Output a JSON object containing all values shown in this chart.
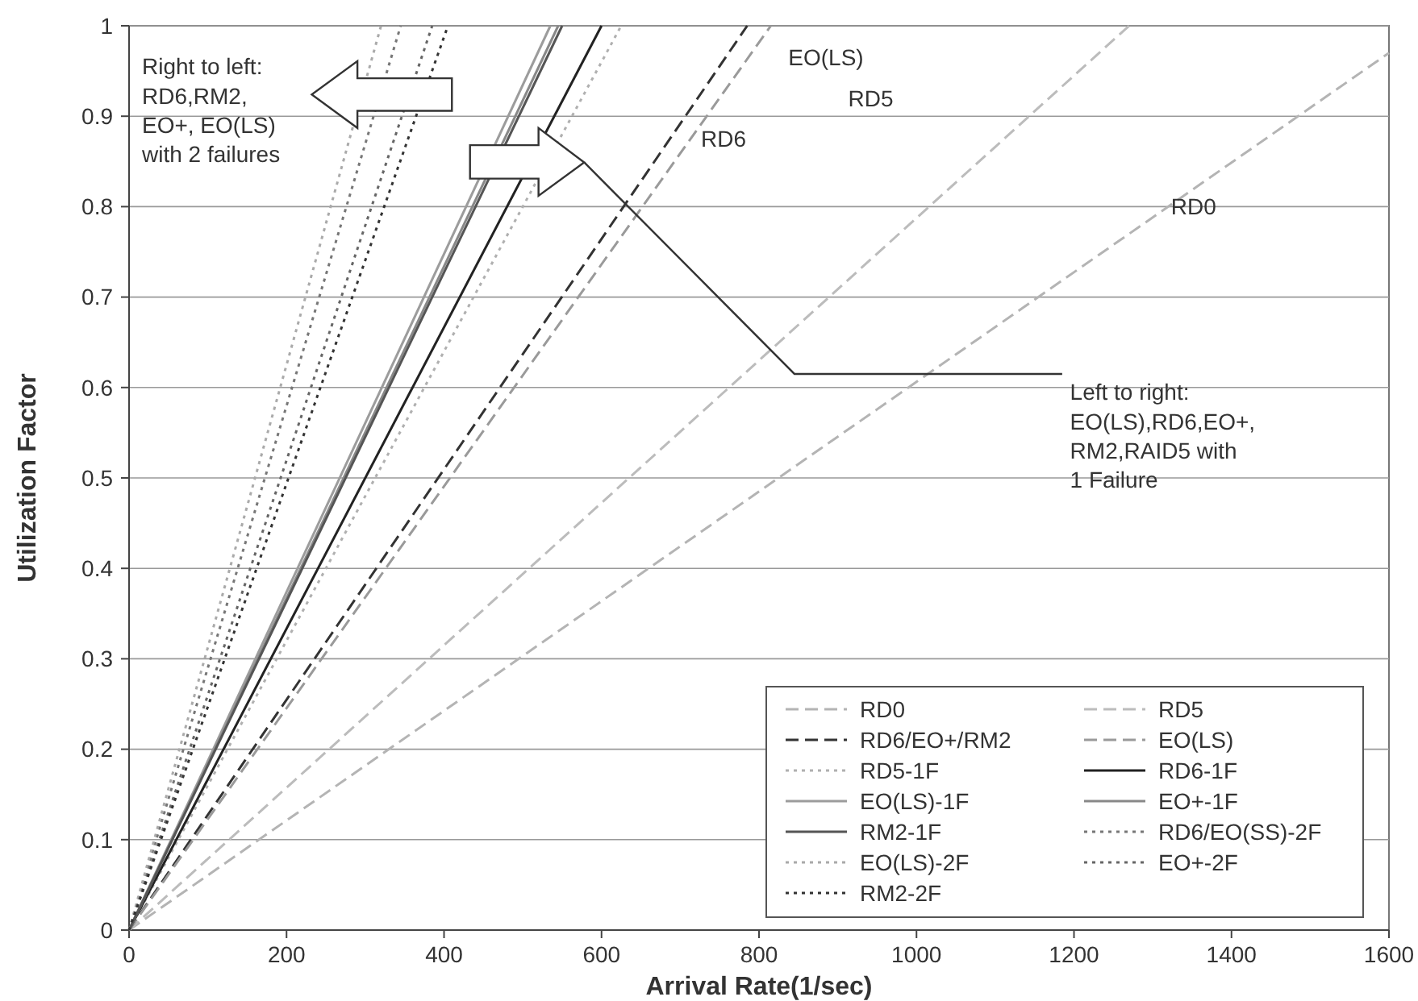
{
  "chart_data": {
    "type": "line",
    "xlabel": "Arrival Rate(1/sec)",
    "ylabel": "Utilization Factor",
    "xlim": [
      0,
      1600
    ],
    "ylim": [
      0,
      1
    ],
    "xticks": [
      0,
      200,
      400,
      600,
      800,
      1000,
      1200,
      1400,
      1600
    ],
    "yticks": [
      0,
      0.1,
      0.2,
      0.3,
      0.4,
      0.5,
      0.6,
      0.7,
      0.8,
      0.9,
      1
    ],
    "grid": "y",
    "legend": "bottom right",
    "marker": "none",
    "series": [
      {
        "name": "RD0",
        "color": "#b4b4b4",
        "line_style": "dashed",
        "x": [
          0,
          1600
        ],
        "values": [
          0,
          0.97
        ]
      },
      {
        "name": "RD5",
        "color": "#bcbcbc",
        "line_style": "dashed",
        "x": [
          0,
          1270
        ],
        "values": [
          0,
          1
        ]
      },
      {
        "name": "RD6/EO+/RM2",
        "color": "#333333",
        "line_style": "dashed",
        "x": [
          0,
          785
        ],
        "values": [
          0,
          1
        ]
      },
      {
        "name": "EO(LS)",
        "color": "#9a9a9a",
        "line_style": "dashed",
        "x": [
          0,
          815
        ],
        "values": [
          0,
          1
        ]
      },
      {
        "name": "RD5-1F",
        "color": "#b0b0b0",
        "line_style": "dotted",
        "x": [
          0,
          625
        ],
        "values": [
          0,
          1
        ]
      },
      {
        "name": "RD6-1F",
        "color": "#222222",
        "line_style": "solid",
        "x": [
          0,
          600
        ],
        "values": [
          0,
          1
        ]
      },
      {
        "name": "EO(LS)-1F",
        "color": "#9c9c9c",
        "line_style": "solid",
        "x": [
          0,
          535
        ],
        "values": [
          0,
          1
        ]
      },
      {
        "name": "EO+-1F",
        "color": "#888888",
        "line_style": "solid",
        "x": [
          0,
          545
        ],
        "values": [
          0,
          1
        ]
      },
      {
        "name": "RM2-1F",
        "color": "#555555",
        "line_style": "solid",
        "x": [
          0,
          550
        ],
        "values": [
          0,
          1
        ]
      },
      {
        "name": "RD6/EO(SS)-2F",
        "color": "#777777",
        "line_style": "dotted",
        "x": [
          0,
          345
        ],
        "values": [
          0,
          1
        ]
      },
      {
        "name": "EO(LS)-2F",
        "color": "#aaaaaa",
        "line_style": "dotted",
        "x": [
          0,
          320
        ],
        "values": [
          0,
          1
        ]
      },
      {
        "name": "EO+-2F",
        "color": "#666666",
        "line_style": "dotted",
        "x": [
          0,
          385
        ],
        "values": [
          0,
          1
        ]
      },
      {
        "name": "RM2-2F",
        "color": "#333333",
        "line_style": "dotted",
        "x": [
          0,
          405
        ],
        "values": [
          0,
          1
        ]
      }
    ],
    "annotations": [
      "EO(LS)",
      "RD5",
      "RD6",
      "RD0",
      "Right to left:\nRD6,RM2,\nEO+, EO(LS)\nwith 2 failures",
      "Left to right:\nEO(LS),RD6,EO+,\nRM2,RAID5 with\n1 Failure"
    ]
  }
}
